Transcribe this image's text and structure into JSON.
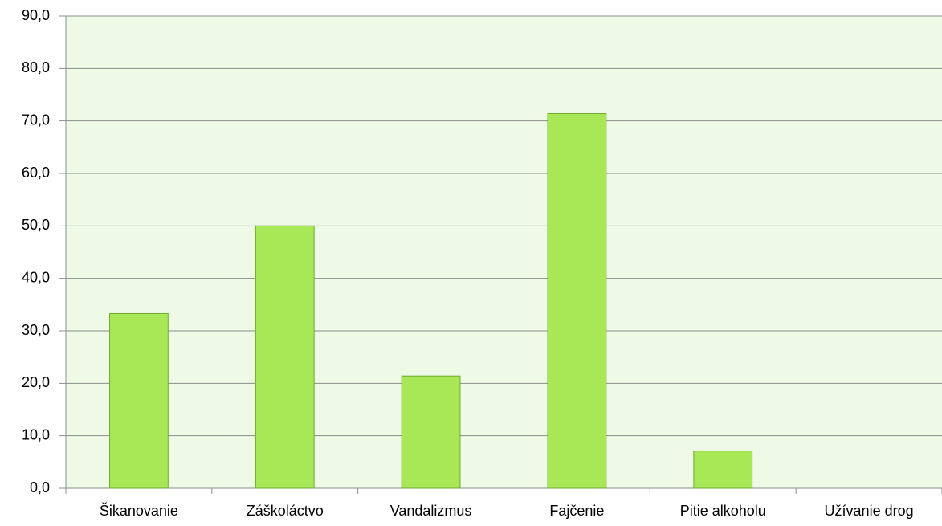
{
  "chart_data": {
    "type": "bar",
    "categories": [
      "Šikanovanie",
      "Záškoláctvo",
      "Vandalizmus",
      "Fajčenie",
      "Pitie alkoholu",
      "Užívanie drog"
    ],
    "values": [
      33.3,
      50.0,
      21.4,
      71.4,
      7.1,
      0
    ],
    "color": "#a8e856",
    "ylim": [
      0,
      90
    ],
    "yticks": [
      {
        "value": 0,
        "label": "0,0"
      },
      {
        "value": 10,
        "label": "10,0"
      },
      {
        "value": 20,
        "label": "20,0"
      },
      {
        "value": 30,
        "label": "30,0"
      },
      {
        "value": 40,
        "label": "40,0"
      },
      {
        "value": 50,
        "label": "50,0"
      },
      {
        "value": 60,
        "label": "60,0"
      },
      {
        "value": 70,
        "label": "70,0"
      },
      {
        "value": 80,
        "label": "80,0"
      },
      {
        "value": 90,
        "label": "90,0"
      }
    ],
    "grid": true
  }
}
